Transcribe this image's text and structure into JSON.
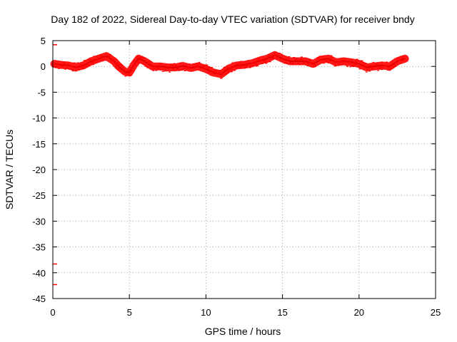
{
  "chart_data": {
    "type": "scatter",
    "title": "Day 182 of 2022, Sidereal Day-to-day VTEC variation (SDTVAR) for receiver bndy",
    "xlabel": "GPS time / hours",
    "ylabel": "SDTVAR / TECUs",
    "xlim": [
      0,
      25
    ],
    "ylim": [
      -45,
      5
    ],
    "xticks": [
      0,
      5,
      10,
      15,
      20,
      25
    ],
    "yticks": [
      5,
      0,
      -5,
      -10,
      -15,
      -20,
      -25,
      -30,
      -35,
      -40,
      -45
    ],
    "grid": true,
    "series_color": "#ff0000",
    "series": [
      {
        "name": "SDTVAR",
        "x": [
          0.1,
          0.5,
          1.0,
          1.5,
          2.0,
          2.5,
          3.0,
          3.5,
          4.0,
          4.3,
          4.7,
          5.0,
          5.3,
          5.6,
          6.0,
          6.5,
          7.0,
          7.5,
          8.0,
          8.5,
          9.0,
          9.5,
          10.0,
          10.5,
          11.0,
          11.5,
          12.0,
          12.5,
          13.0,
          13.5,
          14.0,
          14.5,
          15.0,
          15.5,
          16.0,
          16.5,
          17.0,
          17.5,
          18.0,
          18.5,
          19.0,
          19.5,
          20.0,
          20.5,
          21.0,
          21.5,
          22.0,
          22.5,
          23.0
        ],
        "y": [
          0.5,
          0.3,
          0.2,
          -0.2,
          0.2,
          1.0,
          1.5,
          2.0,
          1.0,
          0.0,
          -1.0,
          -1.2,
          0.3,
          1.5,
          1.0,
          0.0,
          0.0,
          -0.2,
          -0.2,
          0.1,
          -0.3,
          0.0,
          -0.5,
          -1.2,
          -1.5,
          -0.4,
          0.2,
          0.3,
          0.6,
          1.1,
          1.5,
          2.2,
          1.5,
          1.0,
          1.0,
          1.0,
          0.5,
          1.3,
          1.5,
          0.8,
          1.0,
          0.8,
          0.5,
          -0.2,
          0.0,
          0.2,
          0.0,
          1.0,
          1.5
        ]
      }
    ],
    "outliers": [
      {
        "x": 0.0,
        "y": 4.2
      },
      {
        "x": 0.0,
        "y": -38.3
      },
      {
        "x": 0.0,
        "y": -42.3
      }
    ]
  }
}
